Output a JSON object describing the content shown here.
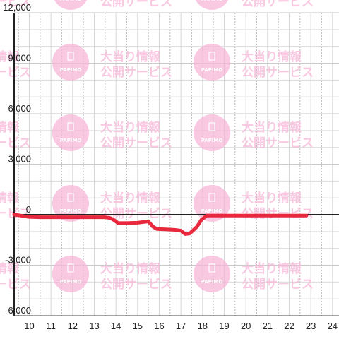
{
  "watermark": {
    "brand": "PAPIMO",
    "line1": "大当り情報",
    "line2": "公開サービス",
    "color": "#f7b6d8"
  },
  "chart_data": {
    "type": "line",
    "title": "",
    "xlabel": "",
    "ylabel": "",
    "xlim": [
      9.3,
      24.3
    ],
    "ylim": [
      -6000,
      12000
    ],
    "x_ticks": [
      10,
      11,
      12,
      13,
      14,
      15,
      16,
      17,
      18,
      19,
      20,
      21,
      22,
      23,
      24
    ],
    "x_tick_labels": [
      "10",
      "11",
      "12",
      "13",
      "14",
      "15",
      "16",
      "17",
      "18",
      "19",
      "20",
      "21",
      "22",
      "23",
      "24"
    ],
    "y_ticks": [
      -6000,
      -3000,
      0,
      3000,
      6000,
      9000,
      12000
    ],
    "y_tick_labels": [
      "-6,000",
      "-3,000",
      "0",
      "3,000",
      "6,000",
      "9,000",
      "12,000"
    ],
    "grid": true,
    "legend": "none",
    "series_color": "#e8283c",
    "series": [
      {
        "x": [
          9.3,
          9.6,
          9.8,
          10.0,
          10.5,
          11.0,
          12.0,
          13.0,
          13.5,
          13.75,
          13.95,
          14.1,
          14.5,
          15.0,
          15.5,
          15.7,
          15.9,
          16.3,
          16.7,
          17.0,
          17.2,
          17.4,
          17.55,
          17.75,
          17.95,
          18.2,
          19.0,
          20.0,
          21.0,
          22.0,
          22.8
        ],
        "y": [
          0,
          -50,
          -100,
          -130,
          -150,
          -150,
          -150,
          -150,
          -150,
          -200,
          -350,
          -500,
          -500,
          -480,
          -400,
          -700,
          -850,
          -870,
          -900,
          -950,
          -1150,
          -1120,
          -950,
          -700,
          -300,
          -50,
          -50,
          -50,
          -50,
          -50,
          -50
        ]
      }
    ]
  }
}
